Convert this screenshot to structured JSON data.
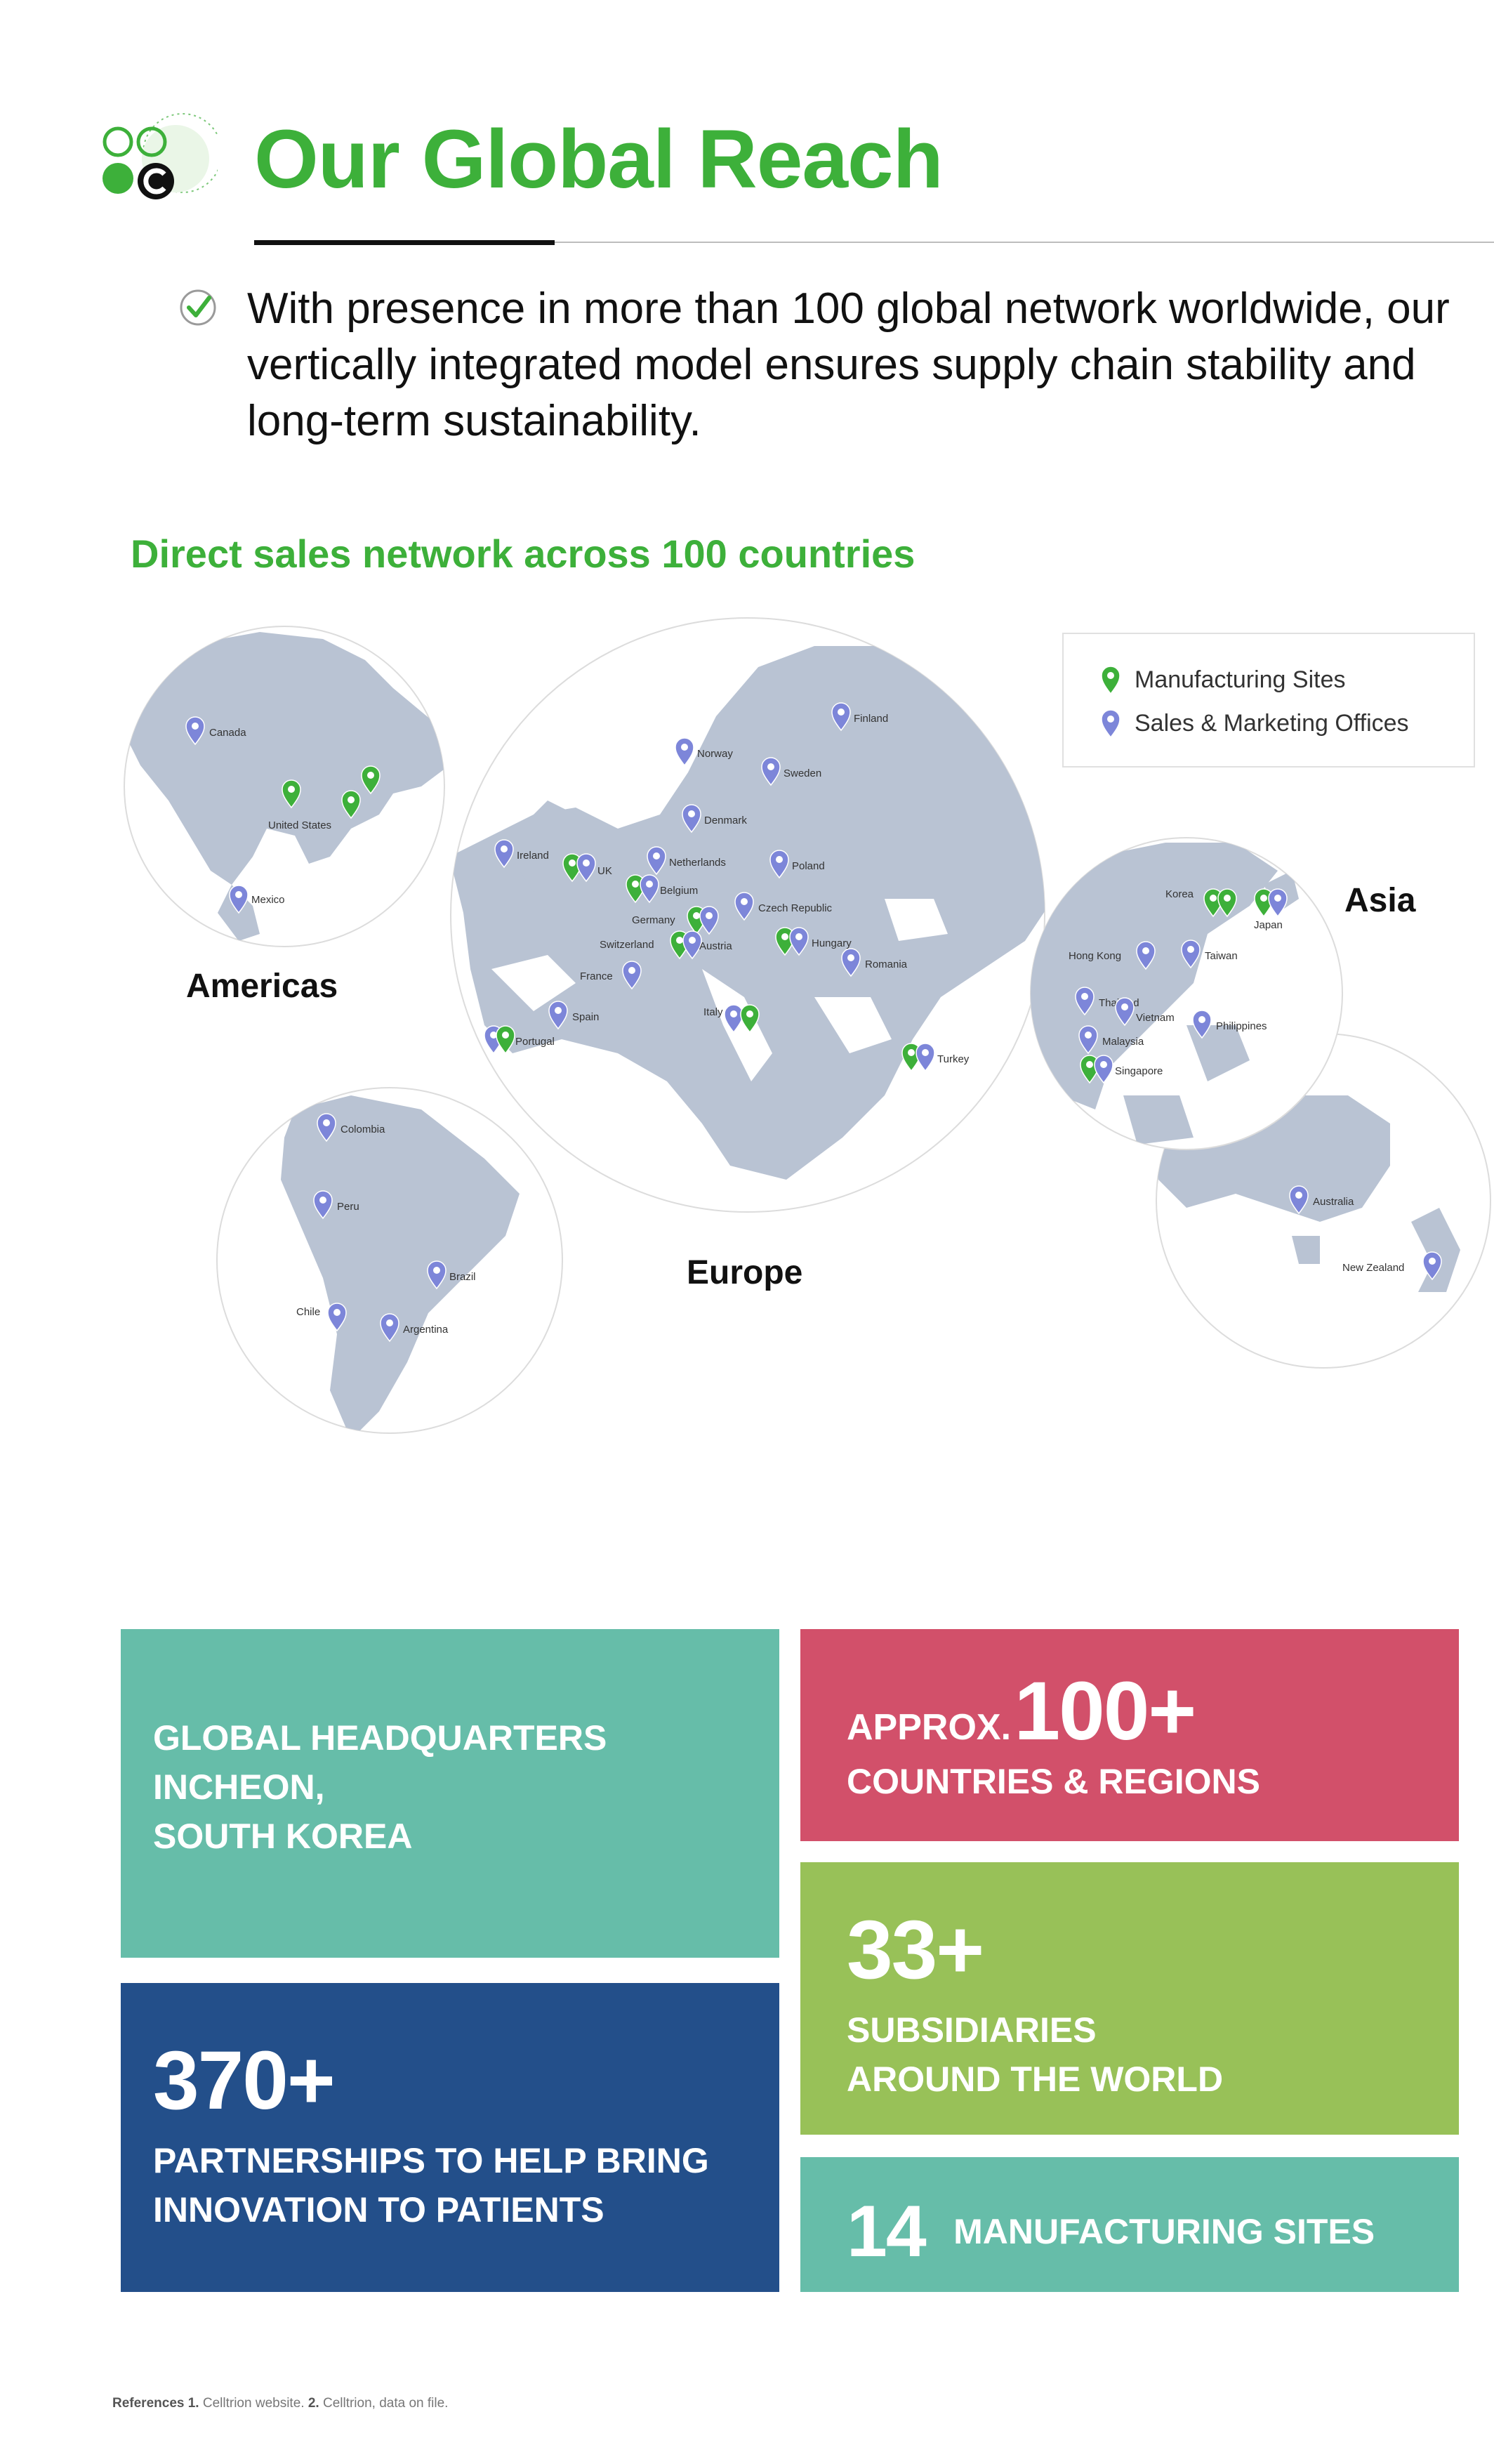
{
  "header": {
    "title": "Our Global Reach",
    "logo_icon": "celltrion-logo-icon",
    "accent_color": "#3db03a"
  },
  "intro": {
    "icon": "check-circle-icon",
    "text": "With presence in more than 100 global network worldwide, our vertically integrated model ensures supply chain stability and long-term sustainability."
  },
  "map_section": {
    "subtitle": "Direct sales network across 100 countries",
    "legend": {
      "manufacturing": "Manufacturing Sites",
      "sales": "Sales & Marketing Offices"
    },
    "regions": {
      "americas": "Americas",
      "europe": "Europe",
      "asia": "Asia"
    },
    "pins": {
      "canada": "Canada",
      "united_states": "United States",
      "mexico": "Mexico",
      "colombia": "Colombia",
      "peru": "Peru",
      "brazil": "Brazil",
      "chile": "Chile",
      "argentina": "Argentina",
      "finland": "Finland",
      "norway": "Norway",
      "sweden": "Sweden",
      "denmark": "Denmark",
      "ireland": "Ireland",
      "uk": "UK",
      "netherlands": "Netherlands",
      "poland": "Poland",
      "belgium": "Belgium",
      "germany": "Germany",
      "czech_republic": "Czech Republic",
      "switzerland": "Switzerland",
      "austria": "Austria",
      "hungary": "Hungary",
      "france": "France",
      "romania": "Romania",
      "spain": "Spain",
      "portugal": "Portugal",
      "italy": "Italy",
      "turkey": "Turkey",
      "korea": "Korea",
      "japan": "Japan",
      "hong_kong": "Hong Kong",
      "taiwan": "Taiwan",
      "thailand": "Thailand",
      "vietnam": "Vietnam",
      "malaysia": "Malaysia",
      "philippines": "Philippines",
      "singapore": "Singapore",
      "australia": "Australia",
      "new_zealand": "New Zealand"
    },
    "colors": {
      "land": "#b9c3d3",
      "pin_manufacturing": "#3db03a",
      "pin_sales": "#7d86d9"
    }
  },
  "stats": {
    "hq": {
      "line1": "GLOBAL HEADQUARTERS",
      "line2": "INCHEON,",
      "line3": "SOUTH KOREA",
      "color": "#66bda9"
    },
    "countries": {
      "prefix": "APPROX.",
      "number": "100+",
      "label": "COUNTRIES & REGIONS",
      "color": "#d2506a"
    },
    "subsidiaries": {
      "number": "33+",
      "line1": "SUBSIDIARIES",
      "line2": "AROUND THE WORLD",
      "color": "#98c158"
    },
    "partnerships": {
      "number": "370+",
      "line1": "PARTNERSHIPS TO HELP BRING",
      "line2": "INNOVATION TO PATIENTS",
      "color": "#234f8a"
    },
    "manufacturing": {
      "number": "14",
      "label": "MANUFACTURING SITES",
      "color": "#66bda9"
    }
  },
  "footer": {
    "refs_label": "References",
    "ref1_num": "1.",
    "ref1": "Celltrion website.",
    "ref2_num": "2.",
    "ref2": "Celltrion, data on file."
  }
}
